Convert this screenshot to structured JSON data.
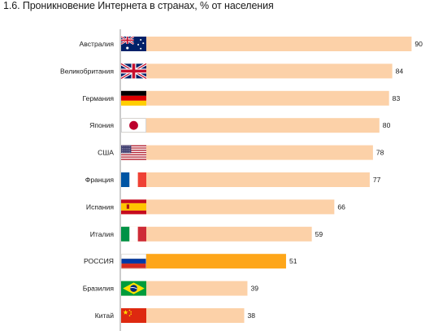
{
  "title": "1.6. Проникновение Интернета в странах, % от населения",
  "colors": {
    "bar": "#fcd1a8",
    "bar_highlight": "#fea619",
    "axis": "#999999"
  },
  "chart_data": {
    "type": "bar",
    "orientation": "horizontal",
    "title": "1.6. Проникновение Интернета в странах, % от населения",
    "categories": [
      "Австралия",
      "Великобритания",
      "Германия",
      "Япония",
      "США",
      "Франция",
      "Испания",
      "Италия",
      "РОССИЯ",
      "Бразилия",
      "Китай"
    ],
    "values": [
      90,
      84,
      83,
      80,
      78,
      77,
      66,
      59,
      51,
      39,
      38
    ],
    "flags": [
      "australia-flag-icon",
      "uk-flag-icon",
      "germany-flag-icon",
      "japan-flag-icon",
      "usa-flag-icon",
      "france-flag-icon",
      "spain-flag-icon",
      "italy-flag-icon",
      "russia-flag-icon",
      "brazil-flag-icon",
      "china-flag-icon"
    ],
    "highlight": "РОССИЯ",
    "xlim": [
      0,
      100
    ],
    "grid": false,
    "legend": "none"
  }
}
